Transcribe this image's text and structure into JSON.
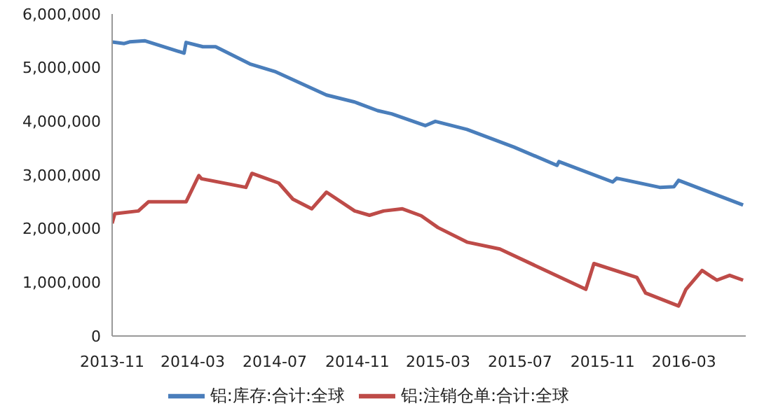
{
  "chart_data": {
    "type": "line",
    "xlim": [
      "2013-11",
      "2016-06"
    ],
    "xticks": [
      "2013-11",
      "2014-03",
      "2014-07",
      "2014-11",
      "2015-03",
      "2015-07",
      "2015-11",
      "2016-03"
    ],
    "ylim": [
      0,
      6000000
    ],
    "yticks": [
      0,
      {
        "value": 1000000,
        "label": "1,000,000"
      },
      {
        "value": 2000000,
        "label": "2,000,000"
      },
      {
        "value": 3000000,
        "label": "3,000,000"
      },
      {
        "value": 4000000,
        "label": "4,000,000"
      },
      {
        "value": 5000000,
        "label": "5,000,000"
      },
      {
        "value": 6000000,
        "label": "6,000,000"
      }
    ],
    "grid": false,
    "legend": "bottom",
    "marker": "none",
    "line_style": "solid",
    "series": [
      {
        "name": "铝:库存:合计:全球",
        "color": "#4a7ebb",
        "x": [
          "2013-11-01",
          "2013-11-19",
          "2013-11-27",
          "2013-12-20",
          "2014-02-16",
          "2014-02-19",
          "2014-03-16",
          "2014-04-04",
          "2014-05-25",
          "2014-07-01",
          "2014-09-16",
          "2014-10-28",
          "2014-12-01",
          "2014-12-22",
          "2015-02-10",
          "2015-02-25",
          "2015-04-13",
          "2015-06-22",
          "2015-08-25",
          "2015-08-28",
          "2015-11-16",
          "2015-11-22",
          "2016-01-25",
          "2016-02-15",
          "2016-02-22",
          "2016-05-28"
        ],
        "values": [
          5480000,
          5450000,
          5480000,
          5500000,
          5270000,
          5470000,
          5390000,
          5390000,
          5070000,
          4930000,
          4490000,
          4360000,
          4200000,
          4140000,
          3920000,
          4000000,
          3850000,
          3520000,
          3180000,
          3250000,
          2870000,
          2940000,
          2770000,
          2780000,
          2900000,
          2440000
        ]
      },
      {
        "name": "铝:注销仓单:合计:全球",
        "color": "#be4b48",
        "x": [
          "2013-11-01",
          "2013-11-05",
          "2013-12-10",
          "2013-12-25",
          "2014-02-19",
          "2014-03-10",
          "2014-03-14",
          "2014-05-19",
          "2014-05-28",
          "2014-07-07",
          "2014-07-28",
          "2014-08-25",
          "2014-09-16",
          "2014-10-28",
          "2014-11-19",
          "2014-12-10",
          "2015-01-07",
          "2015-02-04",
          "2015-03-01",
          "2015-04-13",
          "2015-06-01",
          "2015-10-07",
          "2015-10-19",
          "2015-12-22",
          "2016-01-04",
          "2016-02-22",
          "2016-03-04",
          "2016-03-28",
          "2016-04-19",
          "2016-05-08",
          "2016-05-28"
        ],
        "values": [
          2100000,
          2280000,
          2330000,
          2500000,
          2500000,
          2990000,
          2930000,
          2770000,
          3030000,
          2850000,
          2550000,
          2370000,
          2680000,
          2330000,
          2250000,
          2330000,
          2370000,
          2240000,
          2020000,
          1750000,
          1620000,
          870000,
          1350000,
          1090000,
          800000,
          560000,
          870000,
          1220000,
          1040000,
          1130000,
          1040000
        ]
      }
    ]
  }
}
